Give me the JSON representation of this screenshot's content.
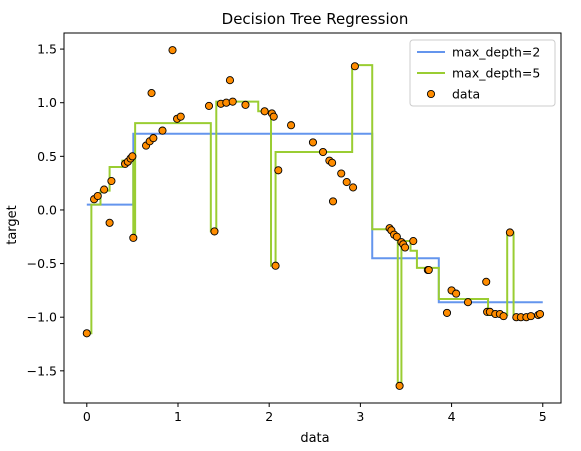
{
  "chart_data": {
    "type": "line",
    "title": "Decision Tree Regression",
    "xlabel": "data",
    "ylabel": "target",
    "xlim": [
      -0.25,
      5.2
    ],
    "ylim": [
      -1.8,
      1.65
    ],
    "xticks": [
      0,
      1,
      2,
      3,
      4,
      5
    ],
    "yticks": [
      -1.5,
      -1.0,
      -0.5,
      0.0,
      0.5,
      1.0,
      1.5
    ],
    "xtick_labels": [
      "0",
      "1",
      "2",
      "3",
      "4",
      "5"
    ],
    "ytick_labels": [
      "−1.5",
      "−1.0",
      "−0.5",
      "0.0",
      "0.5",
      "1.0",
      "1.5"
    ],
    "grid": false,
    "legend_placement": "top-right",
    "series": [
      {
        "name": "max_depth=2",
        "kind": "step",
        "color": "#6495ed",
        "points": [
          [
            0.0,
            0.05
          ],
          [
            0.51,
            0.05
          ],
          [
            0.51,
            0.71
          ],
          [
            3.13,
            0.71
          ],
          [
            3.13,
            -0.45
          ],
          [
            3.86,
            -0.45
          ],
          [
            3.86,
            -0.86
          ],
          [
            5.0,
            -0.86
          ]
        ]
      },
      {
        "name": "max_depth=5",
        "kind": "step",
        "color": "#9acd32",
        "points": [
          [
            0.0,
            -1.15
          ],
          [
            0.05,
            -1.15
          ],
          [
            0.05,
            0.05
          ],
          [
            0.15,
            0.05
          ],
          [
            0.15,
            0.18
          ],
          [
            0.25,
            0.18
          ],
          [
            0.25,
            0.4
          ],
          [
            0.39,
            0.4
          ],
          [
            0.39,
            0.46
          ],
          [
            0.51,
            0.46
          ],
          [
            0.51,
            -0.27
          ],
          [
            0.53,
            -0.27
          ],
          [
            0.53,
            0.81
          ],
          [
            1.36,
            0.81
          ],
          [
            1.36,
            -0.2
          ],
          [
            1.42,
            -0.2
          ],
          [
            1.42,
            1.01
          ],
          [
            1.88,
            1.01
          ],
          [
            1.88,
            0.92
          ],
          [
            2.02,
            0.92
          ],
          [
            2.02,
            -0.52
          ],
          [
            2.07,
            -0.52
          ],
          [
            2.07,
            0.54
          ],
          [
            2.91,
            0.54
          ],
          [
            2.91,
            1.35
          ],
          [
            3.13,
            1.35
          ],
          [
            3.13,
            -0.18
          ],
          [
            3.35,
            -0.18
          ],
          [
            3.35,
            -0.25
          ],
          [
            3.41,
            -0.25
          ],
          [
            3.41,
            -1.64
          ],
          [
            3.45,
            -1.64
          ],
          [
            3.45,
            -0.29
          ],
          [
            3.55,
            -0.29
          ],
          [
            3.55,
            -0.38
          ],
          [
            3.62,
            -0.38
          ],
          [
            3.62,
            -0.54
          ],
          [
            3.86,
            -0.54
          ],
          [
            3.86,
            -0.83
          ],
          [
            4.4,
            -0.83
          ],
          [
            4.4,
            -0.98
          ],
          [
            4.61,
            -0.98
          ],
          [
            4.61,
            -0.21
          ],
          [
            4.68,
            -0.21
          ],
          [
            4.68,
            -0.99
          ],
          [
            5.0,
            -0.99
          ]
        ]
      },
      {
        "name": "data",
        "kind": "scatter",
        "color": "#ff8c00",
        "points": [
          [
            0.0,
            -1.15
          ],
          [
            0.08,
            0.1
          ],
          [
            0.12,
            0.13
          ],
          [
            0.19,
            0.19
          ],
          [
            0.25,
            -0.12
          ],
          [
            0.27,
            0.27
          ],
          [
            0.42,
            0.43
          ],
          [
            0.45,
            0.45
          ],
          [
            0.48,
            0.48
          ],
          [
            0.5,
            0.5
          ],
          [
            0.51,
            -0.26
          ],
          [
            0.65,
            0.6
          ],
          [
            0.69,
            0.64
          ],
          [
            0.71,
            1.09
          ],
          [
            0.73,
            0.67
          ],
          [
            0.83,
            0.74
          ],
          [
            0.94,
            1.49
          ],
          [
            0.99,
            0.85
          ],
          [
            1.03,
            0.87
          ],
          [
            1.34,
            0.97
          ],
          [
            1.4,
            -0.2
          ],
          [
            1.47,
            0.99
          ],
          [
            1.53,
            1.0
          ],
          [
            1.57,
            1.21
          ],
          [
            1.6,
            1.01
          ],
          [
            1.74,
            0.98
          ],
          [
            1.95,
            0.92
          ],
          [
            2.03,
            0.9
          ],
          [
            2.05,
            0.87
          ],
          [
            2.07,
            -0.52
          ],
          [
            2.1,
            0.37
          ],
          [
            2.24,
            0.79
          ],
          [
            2.48,
            0.63
          ],
          [
            2.59,
            0.54
          ],
          [
            2.66,
            0.46
          ],
          [
            2.69,
            0.44
          ],
          [
            2.7,
            0.08
          ],
          [
            2.79,
            0.34
          ],
          [
            2.85,
            0.26
          ],
          [
            2.92,
            0.21
          ],
          [
            2.94,
            1.34
          ],
          [
            3.32,
            -0.17
          ],
          [
            3.34,
            -0.19
          ],
          [
            3.37,
            -0.23
          ],
          [
            3.4,
            -0.25
          ],
          [
            3.43,
            -1.64
          ],
          [
            3.45,
            -0.3
          ],
          [
            3.47,
            -0.32
          ],
          [
            3.49,
            -0.35
          ],
          [
            3.58,
            -0.29
          ],
          [
            3.74,
            -0.56
          ],
          [
            3.75,
            -0.56
          ],
          [
            3.95,
            -0.96
          ],
          [
            4.0,
            -0.75
          ],
          [
            4.05,
            -0.78
          ],
          [
            4.18,
            -0.86
          ],
          [
            4.38,
            -0.67
          ],
          [
            4.39,
            -0.95
          ],
          [
            4.42,
            -0.95
          ],
          [
            4.48,
            -0.97
          ],
          [
            4.53,
            -0.97
          ],
          [
            4.57,
            -0.99
          ],
          [
            4.64,
            -0.21
          ],
          [
            4.71,
            -1.0
          ],
          [
            4.76,
            -1.0
          ],
          [
            4.82,
            -1.0
          ],
          [
            4.87,
            -0.99
          ],
          [
            4.95,
            -0.98
          ],
          [
            4.97,
            -0.97
          ]
        ]
      }
    ]
  }
}
